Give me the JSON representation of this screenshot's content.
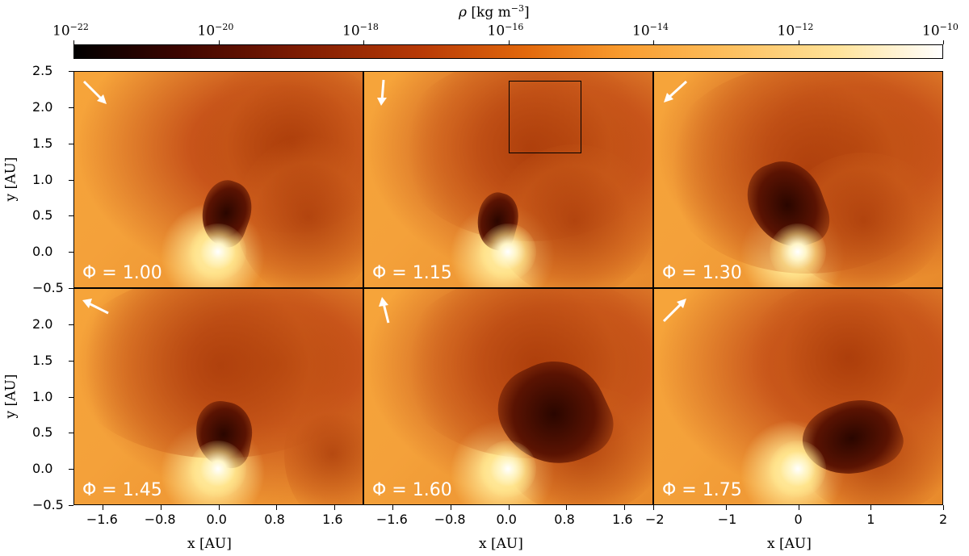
{
  "colorbar": {
    "label_symbol": "ρ",
    "label_units": "[kg m",
    "label_exp": "−3",
    "label_close": "]",
    "ticks": [
      {
        "base": "10",
        "exp": "−22"
      },
      {
        "base": "10",
        "exp": "−20"
      },
      {
        "base": "10",
        "exp": "−18"
      },
      {
        "base": "10",
        "exp": "−16"
      },
      {
        "base": "10",
        "exp": "−14"
      },
      {
        "base": "10",
        "exp": "−12"
      },
      {
        "base": "10",
        "exp": "−10"
      }
    ],
    "colormap": [
      "#000000",
      "#7a1a02",
      "#e2680c",
      "#fdbe5c",
      "#ffffff"
    ],
    "scale": "log"
  },
  "panels": [
    {
      "phi_label": "Φ = 1.00",
      "arrow_direction": "down-right"
    },
    {
      "phi_label": "Φ = 1.15",
      "arrow_direction": "down"
    },
    {
      "phi_label": "Φ = 1.30",
      "arrow_direction": "down-left"
    },
    {
      "phi_label": "Φ = 1.45",
      "arrow_direction": "up-left"
    },
    {
      "phi_label": "Φ = 1.60",
      "arrow_direction": "up"
    },
    {
      "phi_label": "Φ = 1.75",
      "arrow_direction": "up-right"
    }
  ],
  "axes": {
    "y_label": "y [AU]",
    "x_label": "x [AU]",
    "y_ticks_top": [
      "2.5",
      "2.0",
      "1.5",
      "1.0",
      "0.5",
      "0.0",
      "−0.5"
    ],
    "y_ticks_bottom": [
      "2.0",
      "1.5",
      "1.0",
      "0.5",
      "0.0",
      "−0.5"
    ],
    "x_ticks_narrow": [
      "−1.6",
      "−0.8",
      "0.0",
      "0.8",
      "1.6"
    ],
    "x_ticks_wide": [
      "−2",
      "−1",
      "0",
      "1",
      "2"
    ],
    "y_range": [
      -0.5,
      2.5
    ],
    "x_range_narrow": [
      -2.0,
      2.0
    ],
    "x_range_wide": [
      -2,
      2
    ]
  }
}
